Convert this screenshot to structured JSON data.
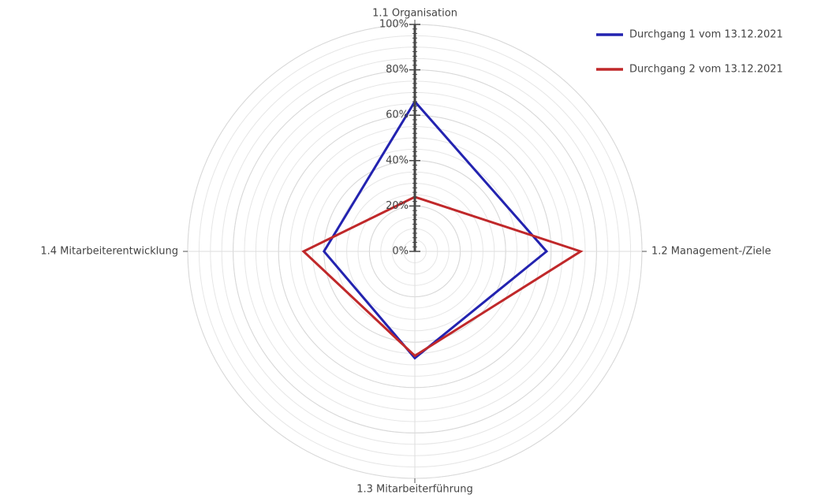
{
  "chart_data": {
    "type": "radar",
    "categories": [
      "1.1 Organisation",
      "1.2 Management-/Ziele",
      "1.3 Mitarbeiterführung",
      "1.4 Mitarbeiterentwicklung"
    ],
    "series": [
      {
        "name": "Durchgang 1 vom 13.12.2021",
        "color": "#2323b0",
        "values": [
          66,
          58,
          47,
          40
        ]
      },
      {
        "name": "Durchgang 2 vom 13.12.2021",
        "color": "#c0282a",
        "values": [
          24,
          73,
          46,
          49
        ]
      }
    ],
    "ylim": [
      0,
      100
    ],
    "yticks": [
      {
        "value": 0,
        "label": "0%"
      },
      {
        "value": 20,
        "label": "20%"
      },
      {
        "value": 40,
        "label": "40%"
      },
      {
        "value": 60,
        "label": "60%"
      },
      {
        "value": 80,
        "label": "80%"
      },
      {
        "value": 100,
        "label": "100%"
      }
    ],
    "grid": true,
    "legend": "top-right"
  }
}
